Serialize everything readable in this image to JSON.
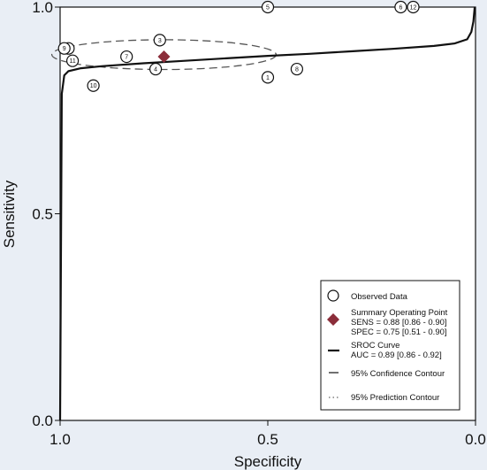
{
  "chart_data": {
    "type": "scatter",
    "title": "",
    "xlabel": "Specificity",
    "ylabel": "Sensitivity",
    "x_reversed": true,
    "xlim": [
      1.0,
      0.0
    ],
    "ylim": [
      0.0,
      1.0
    ],
    "x_ticks": [
      {
        "value": 1.0,
        "label": "1.0"
      },
      {
        "value": 0.5,
        "label": "0.5"
      },
      {
        "value": 0.0,
        "label": "0.0"
      }
    ],
    "y_ticks": [
      {
        "value": 0.0,
        "label": "0.0"
      },
      {
        "value": 0.5,
        "label": "0.5"
      },
      {
        "value": 1.0,
        "label": "1.0"
      }
    ],
    "observed": [
      {
        "label": "1",
        "spec": 0.5,
        "sens": 0.83
      },
      {
        "label": "2",
        "spec": 0.98,
        "sens": 0.9
      },
      {
        "label": "3",
        "spec": 0.76,
        "sens": 0.92
      },
      {
        "label": "4",
        "spec": 0.77,
        "sens": 0.85
      },
      {
        "label": "5",
        "spec": 0.5,
        "sens": 1.0
      },
      {
        "label": "6",
        "spec": 0.18,
        "sens": 1.0
      },
      {
        "label": "7",
        "spec": 0.84,
        "sens": 0.88
      },
      {
        "label": "8",
        "spec": 0.43,
        "sens": 0.85
      },
      {
        "label": "9",
        "spec": 0.99,
        "sens": 0.9
      },
      {
        "label": "10",
        "spec": 0.92,
        "sens": 0.81
      },
      {
        "label": "11",
        "spec": 0.97,
        "sens": 0.87
      },
      {
        "label": "12",
        "spec": 0.15,
        "sens": 1.0
      }
    ],
    "summary_point": {
      "spec": 0.75,
      "sens": 0.88,
      "color": "#8b2d3a"
    },
    "sroc_curve": [
      [
        1.0,
        0.0
      ],
      [
        0.996,
        0.79
      ],
      [
        0.99,
        0.835
      ],
      [
        0.98,
        0.845
      ],
      [
        0.95,
        0.852
      ],
      [
        0.9,
        0.857
      ],
      [
        0.8,
        0.864
      ],
      [
        0.7,
        0.87
      ],
      [
        0.6,
        0.876
      ],
      [
        0.5,
        0.882
      ],
      [
        0.4,
        0.887
      ],
      [
        0.3,
        0.893
      ],
      [
        0.2,
        0.899
      ],
      [
        0.1,
        0.906
      ],
      [
        0.05,
        0.912
      ],
      [
        0.02,
        0.922
      ],
      [
        0.01,
        0.94
      ],
      [
        0.005,
        0.965
      ],
      [
        0.002,
        1.0
      ]
    ],
    "confidence_ellipse": {
      "center_spec": 0.75,
      "center_sens": 0.885,
      "radius_spec": 0.27,
      "radius_sens": 0.036
    },
    "legend": {
      "placement": "bottom-right",
      "observed_label": "Observed Data",
      "summary_label": "Summary Operating Point",
      "summary_sens": "SENS = 0.88 [0.86 - 0.90]",
      "summary_spec": "SPEC = 0.75 [0.51 - 0.90]",
      "sroc_label": "SROC Curve",
      "sroc_auc": "AUC = 0.89 [0.86 - 0.92]",
      "confidence_label": "95% Confidence Contour",
      "prediction_label": "95% Prediction Contour"
    }
  }
}
